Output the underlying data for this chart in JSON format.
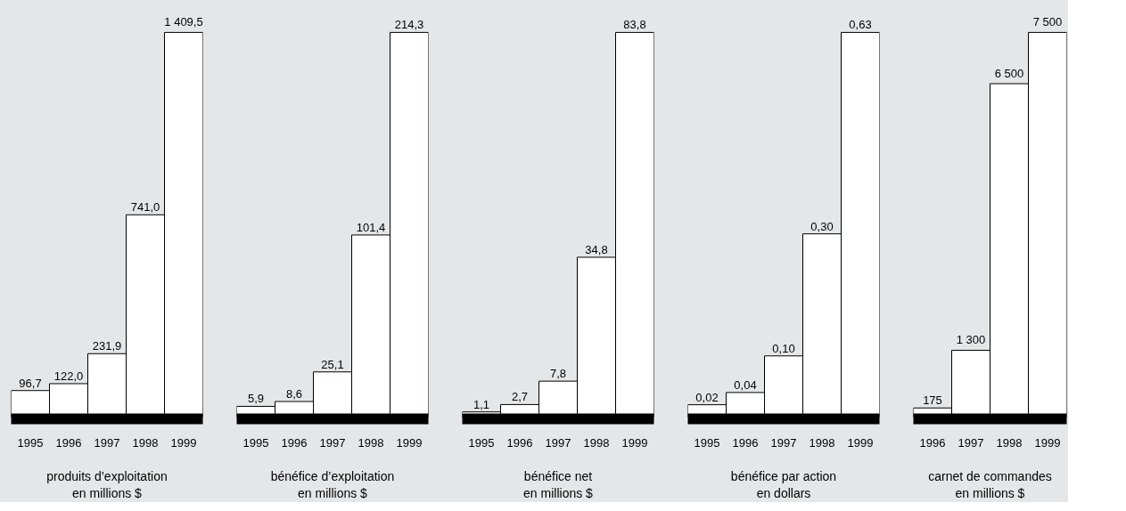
{
  "chart_data": [
    {
      "type": "bar",
      "categories": [
        "1995",
        "1996",
        "1997",
        "1998",
        "1999"
      ],
      "values": [
        96.7,
        122.0,
        231.9,
        741.0,
        1409.5
      ],
      "value_labels": [
        "96,7",
        "122,0",
        "231,9",
        "741,0",
        "1 409,5"
      ],
      "xlabel": "produits d’exploitation\nen millions $",
      "color": "#ffffff"
    },
    {
      "type": "bar",
      "categories": [
        "1995",
        "1996",
        "1997",
        "1998",
        "1999"
      ],
      "values": [
        5.9,
        8.6,
        25.1,
        101.4,
        214.3
      ],
      "value_labels": [
        "5,9",
        "8,6",
        "25,1",
        "101,4",
        "214,3"
      ],
      "xlabel": "bénéfice d’exploitation\nen millions $",
      "color": "#ffffff"
    },
    {
      "type": "bar",
      "categories": [
        "1995",
        "1996",
        "1997",
        "1998",
        "1999"
      ],
      "values": [
        1.1,
        2.7,
        7.8,
        34.8,
        83.8
      ],
      "value_labels": [
        "1,1",
        "2,7",
        "7,8",
        "34,8",
        "83,8"
      ],
      "xlabel": "bénéfice net\nen millions $",
      "color": "#ffffff"
    },
    {
      "type": "bar",
      "categories": [
        "1995",
        "1996",
        "1997",
        "1998",
        "1999"
      ],
      "values": [
        0.02,
        0.04,
        0.1,
        0.3,
        0.63
      ],
      "value_labels": [
        "0,02",
        "0,04",
        "0,10",
        "0,30",
        "0,63"
      ],
      "xlabel": "bénéfice par action\nen dollars",
      "color": "#ffffff"
    },
    {
      "type": "bar",
      "categories": [
        "1996",
        "1997",
        "1998",
        "1999"
      ],
      "values": [
        175,
        1300,
        6500,
        7500
      ],
      "value_labels": [
        "175",
        "1 300",
        "6 500",
        "7 500"
      ],
      "xlabel": "carnet de commandes\nen millions $",
      "color": "#ffffff"
    }
  ]
}
